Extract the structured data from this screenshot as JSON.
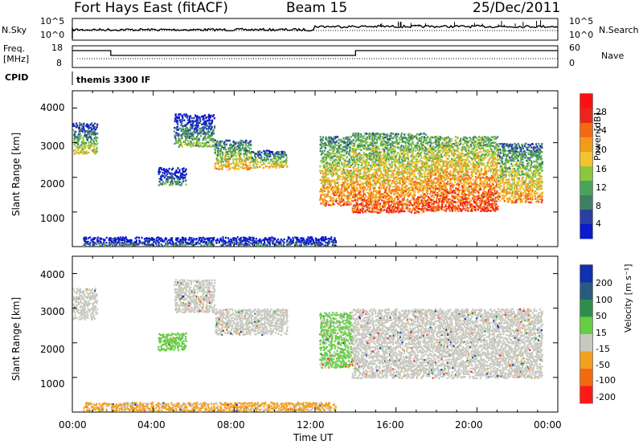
{
  "header": {
    "station": "Fort Hays East (fitACF)",
    "beam": "Beam 15",
    "date": "25/Dec/2011"
  },
  "noise_panel": {
    "left_label": "N.Sky",
    "right_label": "N.Search",
    "left_ticks": [
      "10^5",
      "10^0"
    ],
    "right_ticks": [
      "10^5",
      "10^0"
    ]
  },
  "freq_panel": {
    "left_label_1": "Freq.",
    "left_label_2": "[MHz]",
    "right_label": "Nave",
    "left_ticks": [
      "18",
      "8"
    ],
    "right_ticks": [
      "60",
      "0"
    ]
  },
  "cpid": {
    "label": "CPID",
    "value": "themis 3300 IF"
  },
  "time_axis": {
    "ticks": [
      "00:00",
      "04:00",
      "08:00",
      "12:00",
      "16:00",
      "20:00",
      "00:00"
    ],
    "label": "Time UT"
  },
  "power_panel": {
    "ylabel": "Slant Range [km]",
    "yticks": [
      "4000",
      "3000",
      "2000",
      "1000"
    ],
    "colorbar_label": "Power [dB]",
    "colorbar_ticks": [
      "28",
      "24",
      "20",
      "16",
      "12",
      "8",
      "4"
    ]
  },
  "velocity_panel": {
    "ylabel": "Slant Range [km]",
    "yticks": [
      "4000",
      "3000",
      "2000",
      "1000"
    ],
    "colorbar_label": "Velocity [m s⁻¹]",
    "colorbar_ticks": [
      "200",
      "100",
      "50",
      "15",
      "-15",
      "-50",
      "-100",
      "-200"
    ]
  },
  "colors": {
    "power_scale": [
      "#0a1acc",
      "#2a3f9f",
      "#3f7f66",
      "#4aa35a",
      "#8cc63f",
      "#f2c230",
      "#f29a1a",
      "#f26a10",
      "#e8261a",
      "#ff1010"
    ],
    "velocity_scale": [
      "#1030b0",
      "#2a5a80",
      "#2f8f4a",
      "#66cc44",
      "#c8c8c0",
      "#f2a020",
      "#f26a10",
      "#ff1818"
    ]
  },
  "chart_data": {
    "type": "heatmap",
    "x_range_hours": [
      0,
      24
    ],
    "y_range_km": [
      0,
      4500
    ],
    "power_patches": [
      {
        "t0": 0.0,
        "t1": 1.2,
        "r0": 2700,
        "r1": 3600,
        "level": 0.55
      },
      {
        "t0": 5.0,
        "t1": 7.0,
        "r0": 2900,
        "r1": 3850,
        "level": 0.45
      },
      {
        "t0": 7.0,
        "t1": 8.8,
        "r0": 2250,
        "r1": 3100,
        "level": 0.65
      },
      {
        "t0": 8.8,
        "t1": 10.6,
        "r0": 2300,
        "r1": 2800,
        "level": 0.6
      },
      {
        "t0": 4.2,
        "t1": 5.6,
        "r0": 1800,
        "r1": 2300,
        "level": 0.35
      },
      {
        "t0": 12.2,
        "t1": 13.8,
        "r0": 1200,
        "r1": 3200,
        "level": 0.75
      },
      {
        "t0": 13.8,
        "t1": 17.5,
        "r0": 1000,
        "r1": 3300,
        "level": 0.8
      },
      {
        "t0": 17.5,
        "t1": 21.0,
        "r0": 1050,
        "r1": 3200,
        "level": 0.85
      },
      {
        "t0": 21.0,
        "t1": 23.2,
        "r0": 1300,
        "r1": 3000,
        "level": 0.7
      },
      {
        "t0": 0.5,
        "t1": 13.0,
        "r0": 50,
        "r1": 300,
        "level": 0.25
      }
    ],
    "velocity_patches": [
      {
        "t0": 0.0,
        "t1": 1.2,
        "r0": 2700,
        "r1": 3600,
        "vel": -5
      },
      {
        "t0": 5.0,
        "t1": 7.0,
        "r0": 2900,
        "r1": 3850,
        "vel": -5
      },
      {
        "t0": 7.0,
        "t1": 10.6,
        "r0": 2250,
        "r1": 3000,
        "vel": -5
      },
      {
        "t0": 4.2,
        "t1": 5.6,
        "r0": 1800,
        "r1": 2300,
        "vel": 45
      },
      {
        "t0": 12.2,
        "t1": 13.8,
        "r0": 1300,
        "r1": 2900,
        "vel": 40
      },
      {
        "t0": 13.8,
        "t1": 23.2,
        "r0": 1000,
        "r1": 3000,
        "vel": -5
      },
      {
        "t0": 0.5,
        "t1": 13.0,
        "r0": 50,
        "r1": 300,
        "vel": -40
      }
    ]
  }
}
